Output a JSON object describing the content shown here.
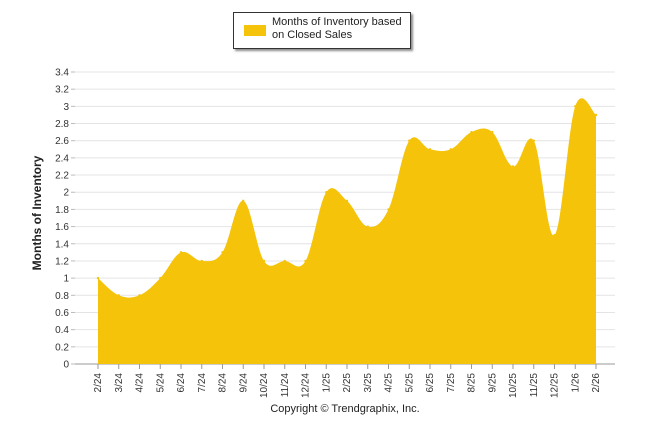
{
  "chart_data": {
    "type": "area",
    "title": "",
    "legend": [
      "Months of Inventory based on Closed Sales"
    ],
    "legend_placement": "top-center",
    "xlabel": "",
    "ylabel": "Months of Inventory",
    "ylim": [
      0,
      3.4
    ],
    "yticks": [
      "0",
      "0.2",
      "0.4",
      "0.6",
      "0.8",
      "1",
      "1.2",
      "1.4",
      "1.6",
      "1.8",
      "2",
      "2.2",
      "2.4",
      "2.6",
      "2.8",
      "3",
      "3.2",
      "3.4"
    ],
    "grid": true,
    "categories": [
      "2/24",
      "3/24",
      "4/24",
      "5/24",
      "6/24",
      "7/24",
      "8/24",
      "9/24",
      "10/24",
      "11/24",
      "12/24",
      "1/25",
      "2/25",
      "3/25",
      "4/25",
      "5/25",
      "6/25",
      "7/25",
      "8/25",
      "9/25",
      "10/25",
      "11/25",
      "12/25",
      "1/26",
      "2/26"
    ],
    "series": [
      {
        "name": "Months of Inventory based on Closed Sales",
        "color": "#F5C30A",
        "values": [
          1.0,
          0.8,
          0.8,
          1.0,
          1.3,
          1.2,
          1.3,
          1.9,
          1.2,
          1.2,
          1.2,
          2.0,
          1.9,
          1.6,
          1.8,
          2.6,
          2.5,
          2.5,
          2.7,
          2.7,
          2.3,
          2.6,
          1.5,
          3.0,
          2.9
        ]
      }
    ]
  },
  "legend": {
    "label": "Months of Inventory based on Closed Sales",
    "color": "#F5C30A"
  },
  "footer": {
    "copyright": "Copyright © Trendgraphix, Inc."
  }
}
